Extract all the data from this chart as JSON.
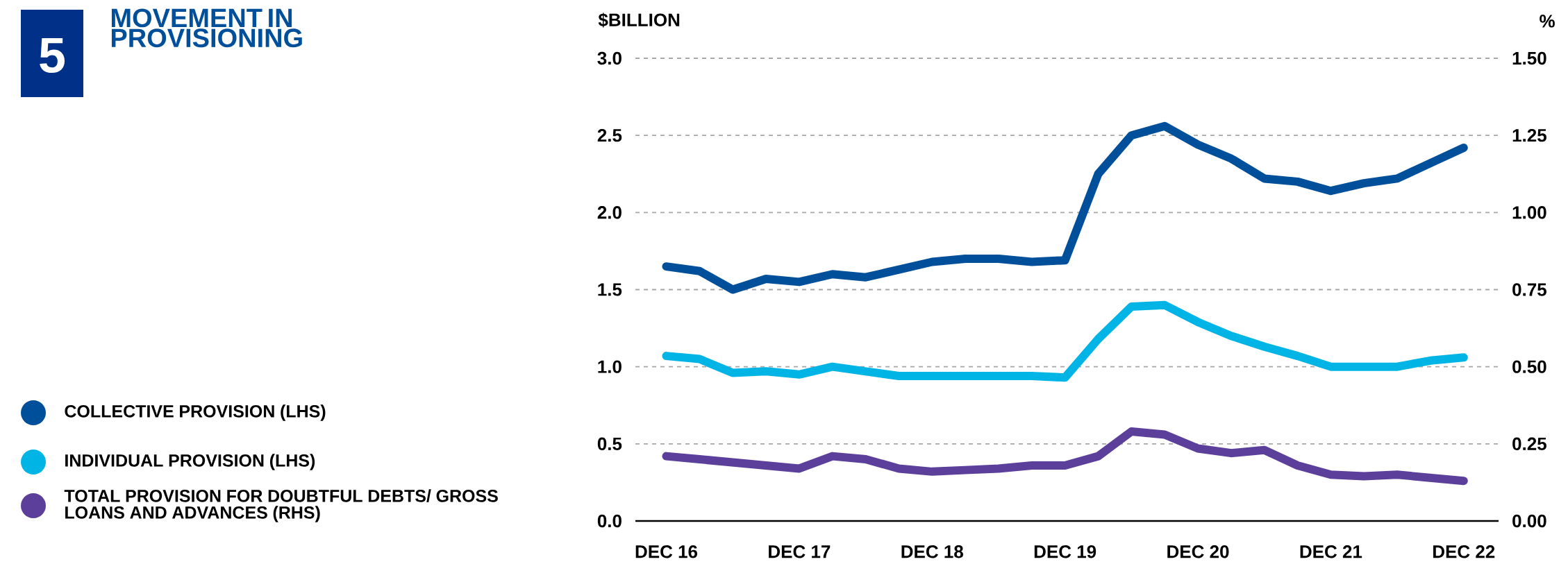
{
  "chart_data": {
    "type": "line",
    "title": "MOVEMENT IN PROVISIONING",
    "annotations": [
      "5"
    ],
    "ylabel": "$BILLION",
    "y2label": "%",
    "categories": [
      "DEC 16",
      null,
      null,
      null,
      "DEC 17",
      null,
      null,
      null,
      "DEC 18",
      null,
      null,
      null,
      "DEC 19",
      null,
      null,
      null,
      "DEC 20",
      null,
      null,
      null,
      "DEC 21",
      null,
      null,
      null,
      "DEC 22"
    ],
    "ylim": [
      0,
      3.0
    ],
    "yticks": [
      {
        "value": 0,
        "label": "0.0"
      },
      0.5,
      {
        "value": 1,
        "label": "1.0"
      },
      1.5,
      {
        "value": 2,
        "label": "2.0"
      },
      2.5,
      {
        "value": 3,
        "label": "3.0"
      }
    ],
    "y2lim": [
      0,
      1.5
    ],
    "y2ticks": [
      {
        "value": 0,
        "label": "0.00"
      },
      0.25,
      {
        "value": 0.5,
        "label": "0.50"
      },
      0.75,
      {
        "value": 1,
        "label": "1.00"
      },
      1.25,
      {
        "value": 1.5,
        "label": "1.50"
      }
    ],
    "grid": "y",
    "legend": "left",
    "marker": "none",
    "line_style": "solid",
    "series": [
      {
        "name": "COLLECTIVE PROVISION (LHS)",
        "color": "#004f9a",
        "values": [
          1.65,
          1.62,
          1.5,
          1.57,
          1.55,
          1.6,
          1.58,
          1.63,
          1.68,
          1.7,
          1.7,
          1.68,
          1.69,
          2.25,
          2.5,
          2.56,
          2.44,
          2.35,
          2.22,
          2.2,
          2.14,
          2.19,
          2.22,
          2.32,
          2.42
        ]
      },
      {
        "name": "INDIVIDUAL PROVISION (LHS)",
        "color": "#00b5e6",
        "values": [
          1.07,
          1.05,
          0.96,
          0.97,
          0.95,
          1.0,
          0.97,
          0.94,
          0.94,
          0.94,
          0.94,
          0.94,
          0.93,
          1.18,
          1.39,
          1.4,
          1.29,
          1.2,
          1.13,
          1.07,
          1.0,
          1.0,
          1.0,
          1.04,
          1.06
        ]
      },
      {
        "name": "TOTAL PROVISION FOR DOUBTFUL DEBTS/ GROSS LOANS AND ADVANCES (RHS)",
        "color": "#5b3f9a",
        "axis": "y2",
        "values": [
          0.21,
          0.2,
          0.19,
          0.18,
          0.17,
          0.21,
          0.2,
          0.17,
          0.16,
          0.165,
          0.17,
          0.18,
          0.18,
          0.21,
          0.29,
          0.28,
          0.235,
          0.22,
          0.23,
          0.18,
          0.15,
          0.145,
          0.15,
          0.14,
          0.13
        ]
      }
    ]
  }
}
